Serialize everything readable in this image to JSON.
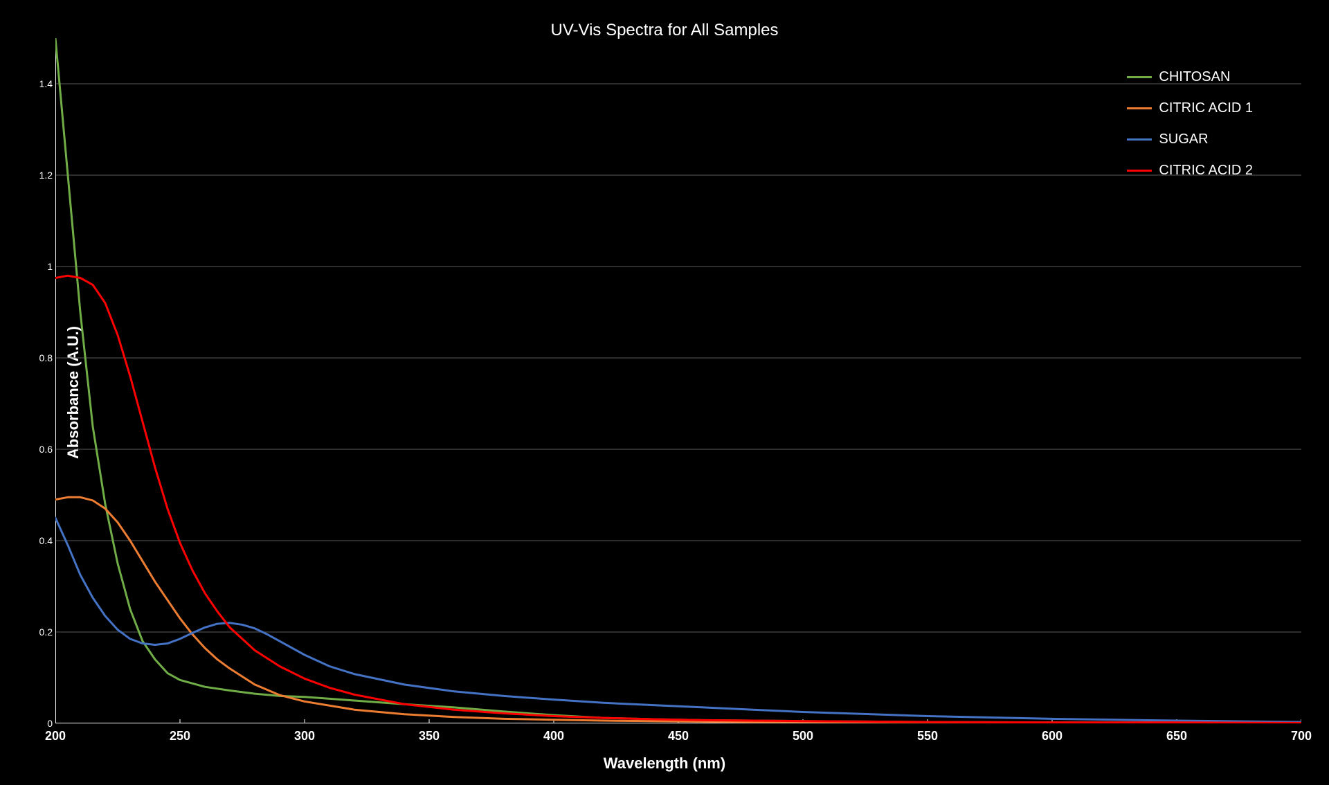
{
  "chart": {
    "type": "line",
    "title": "UV-Vis Spectra for All Samples",
    "title_fontsize": 24,
    "title_color": "#ffffff",
    "background_color": "#000000",
    "plot_area_color": "#000000",
    "xlabel": "Wavelength (nm)",
    "ylabel": "Absorbance (A.U.)",
    "label_fontsize": 22,
    "label_color": "#ffffff",
    "xlim": [
      200,
      700
    ],
    "ylim": [
      0,
      1.5
    ],
    "xtick_step": 50,
    "xticks": [
      200,
      250,
      300,
      350,
      400,
      450,
      500,
      550,
      600,
      650,
      700
    ],
    "yticks": [
      0,
      0.2,
      0.4,
      0.6,
      0.8,
      1.0,
      1.2,
      1.4
    ],
    "ytick_labels": [
      "0",
      "0.2",
      "0.4",
      "0.6",
      "0.8",
      "1",
      "1.2",
      "1.4"
    ],
    "tick_fontsize": 16,
    "tick_color": "#ffffff",
    "grid": true,
    "grid_color": "#3a3a3a",
    "grid_major_color": "#5a5a5a",
    "axis_line_color": "#ffffff",
    "line_width": 3,
    "legend_position": "top-right",
    "legend_fontsize": 20,
    "series": [
      {
        "name": "CHITOSAN",
        "color": "#70ad47",
        "x": [
          200,
          205,
          210,
          215,
          220,
          225,
          230,
          235,
          240,
          245,
          250,
          260,
          270,
          280,
          290,
          300,
          320,
          340,
          360,
          380,
          400,
          420,
          440,
          460,
          480,
          500,
          550,
          600,
          650,
          700
        ],
        "y": [
          1.5,
          1.2,
          0.9,
          0.65,
          0.48,
          0.35,
          0.25,
          0.18,
          0.14,
          0.11,
          0.095,
          0.08,
          0.072,
          0.065,
          0.06,
          0.058,
          0.05,
          0.042,
          0.035,
          0.026,
          0.018,
          0.012,
          0.009,
          0.007,
          0.006,
          0.005,
          0.003,
          0.002,
          0.002,
          0.001
        ]
      },
      {
        "name": "CITRIC ACID 1",
        "color": "#ed7d31",
        "x": [
          200,
          205,
          210,
          215,
          220,
          225,
          230,
          235,
          240,
          245,
          250,
          255,
          260,
          265,
          270,
          280,
          290,
          300,
          320,
          340,
          360,
          380,
          400,
          420,
          440,
          460,
          480,
          500,
          550,
          600,
          650,
          700
        ],
        "y": [
          0.49,
          0.495,
          0.495,
          0.488,
          0.47,
          0.44,
          0.4,
          0.355,
          0.31,
          0.27,
          0.23,
          0.195,
          0.165,
          0.14,
          0.12,
          0.085,
          0.062,
          0.048,
          0.03,
          0.02,
          0.014,
          0.01,
          0.008,
          0.006,
          0.005,
          0.004,
          0.003,
          0.003,
          0.002,
          0.001,
          0.001,
          0.001
        ]
      },
      {
        "name": "SUGAR",
        "color": "#4472c4",
        "x": [
          200,
          205,
          210,
          215,
          220,
          225,
          230,
          235,
          240,
          245,
          250,
          255,
          260,
          265,
          270,
          275,
          280,
          285,
          290,
          300,
          310,
          320,
          340,
          360,
          380,
          400,
          420,
          440,
          460,
          480,
          500,
          550,
          600,
          650,
          700
        ],
        "y": [
          0.45,
          0.39,
          0.325,
          0.275,
          0.235,
          0.205,
          0.185,
          0.175,
          0.172,
          0.175,
          0.185,
          0.198,
          0.21,
          0.218,
          0.22,
          0.216,
          0.208,
          0.195,
          0.18,
          0.15,
          0.125,
          0.108,
          0.085,
          0.07,
          0.06,
          0.052,
          0.045,
          0.04,
          0.035,
          0.03,
          0.025,
          0.016,
          0.01,
          0.006,
          0.003
        ]
      },
      {
        "name": "CITRIC ACID 2",
        "color": "#ff0000",
        "x": [
          200,
          205,
          210,
          215,
          220,
          225,
          230,
          235,
          240,
          245,
          250,
          255,
          260,
          265,
          270,
          280,
          290,
          300,
          310,
          320,
          340,
          360,
          380,
          400,
          420,
          440,
          460,
          480,
          500,
          550,
          600,
          650,
          700
        ],
        "y": [
          0.975,
          0.98,
          0.975,
          0.96,
          0.92,
          0.85,
          0.76,
          0.66,
          0.56,
          0.47,
          0.395,
          0.335,
          0.285,
          0.245,
          0.21,
          0.16,
          0.125,
          0.098,
          0.078,
          0.063,
          0.042,
          0.03,
          0.022,
          0.016,
          0.012,
          0.009,
          0.007,
          0.006,
          0.005,
          0.003,
          0.002,
          0.002,
          0.001
        ]
      }
    ]
  }
}
